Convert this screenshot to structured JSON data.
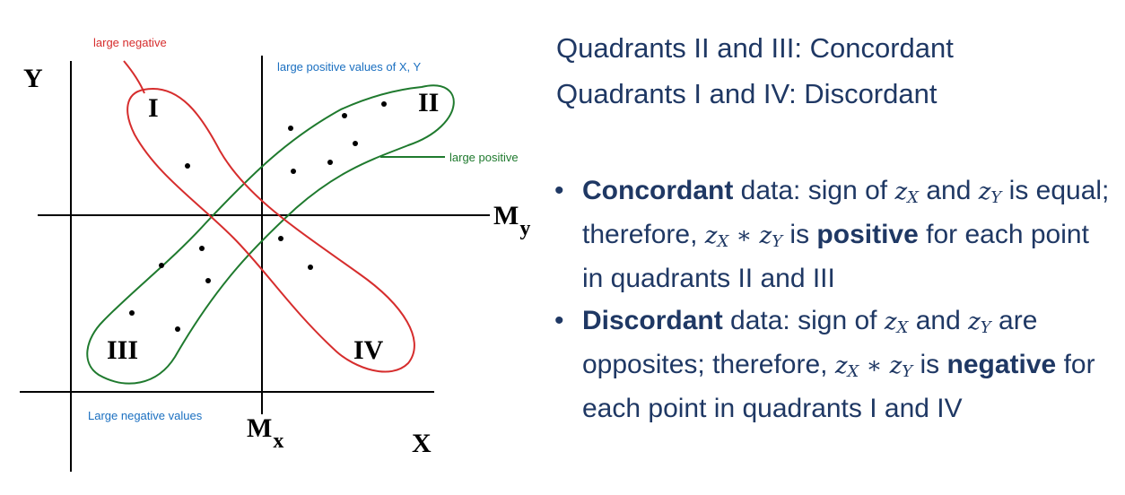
{
  "diagram": {
    "axis_y_label": "Y",
    "axis_x_label": "X",
    "mean_x_label": "M",
    "mean_x_sub": "x",
    "mean_y_label": "M",
    "mean_y_sub": "y",
    "quadrants": {
      "q1": "I",
      "q2": "II",
      "q3": "III",
      "q4": "IV"
    },
    "annotations": {
      "large_negative": "large negative",
      "large_positive_xy": "large positive values of X, Y",
      "large_positive": "large positive",
      "large_negative_values": "Large negative values"
    },
    "colors": {
      "red": "#d62d2d",
      "green": "#1f7a2e",
      "blue": "#1a6fc0",
      "text": "#1f3864"
    }
  },
  "text": {
    "heading1": "Quadrants II and III: Concordant",
    "heading2": "Quadrants I and IV: Discordant",
    "b1": {
      "term": "Concordant",
      "p1": " data: sign of ",
      "zx": "z",
      "zx_sub": "X",
      "and": " and ",
      "zy": "z",
      "zy_sub": "Y",
      "p2": " is equal; therefore, ",
      "prod_a": "z",
      "prod_a_sub": "X",
      "star": " ∗ ",
      "prod_b": "z",
      "prod_b_sub": "Y",
      "is": " is ",
      "strong": "positive",
      "tail": " for each point in quadrants II and III"
    },
    "b2": {
      "term": "Discordant",
      "p1": " data: sign of ",
      "zx": "z",
      "zx_sub": "X",
      "and": " and ",
      "zy": "z",
      "zy_sub": "Y",
      "p2": " are opposites; therefore, ",
      "prod_a": "z",
      "prod_a_sub": "X",
      "star": " ∗ ",
      "prod_b": "z",
      "prod_b_sub": "Y",
      "is": " is ",
      "strong": "negative",
      "tail": " for each point in quadrants I and IV"
    }
  }
}
